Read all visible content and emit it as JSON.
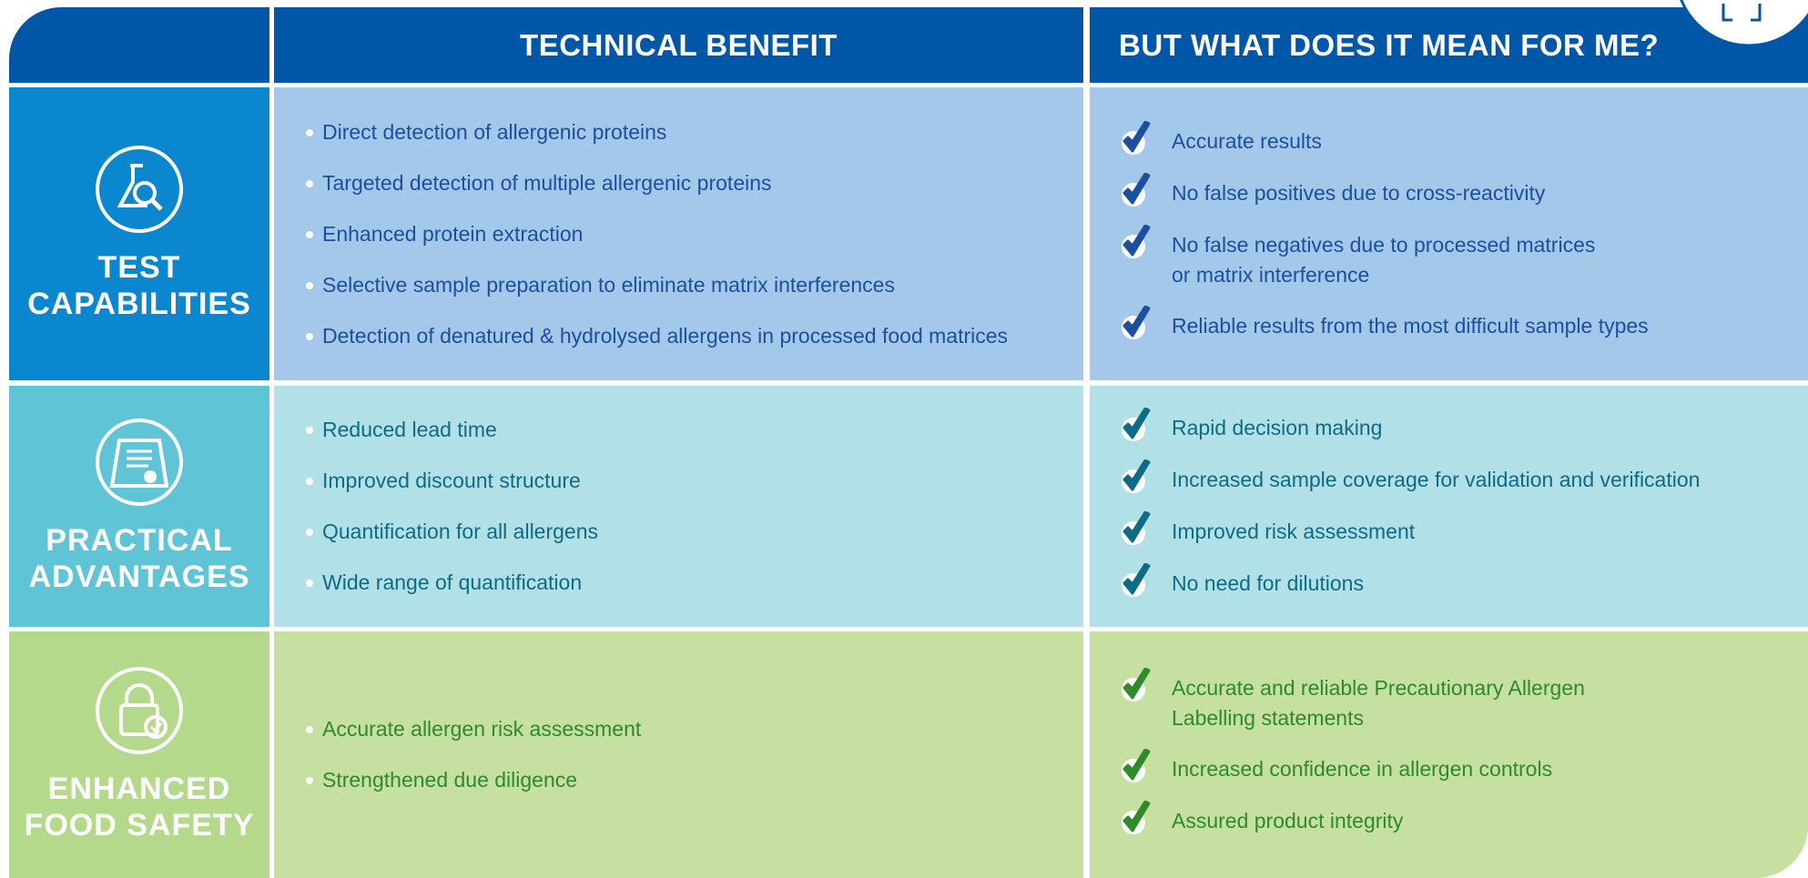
{
  "header": {
    "columns": [
      "TECHNICAL BENEFIT",
      "BUT WHAT DOES IT MEAN FOR ME?"
    ]
  },
  "rows": [
    {
      "label": [
        "TEST",
        "CAPABILITIES"
      ],
      "benefits": [
        "Direct detection of allergenic proteins",
        "Targeted detection of multiple allergenic proteins",
        "Enhanced protein extraction",
        "Selective sample preparation to eliminate matrix interferences",
        "Detection of denatured & hydrolysed allergens in processed food matrices"
      ],
      "meanings": [
        [
          "Accurate results"
        ],
        [
          "No false positives due to cross-reactivity"
        ],
        [
          "No false negatives due to processed matrices",
          "or matrix interference"
        ],
        [
          "Reliable results from the most difficult sample types"
        ]
      ]
    },
    {
      "label": [
        "PRACTICAL",
        "ADVANTAGES"
      ],
      "benefits": [
        "Reduced lead time",
        "Improved discount structure",
        "Quantification for all allergens",
        "Wide range of quantification"
      ],
      "meanings": [
        [
          "Rapid decision making"
        ],
        [
          "Increased sample coverage for validation and verification"
        ],
        [
          "Improved risk assessment"
        ],
        [
          "No need for dilutions"
        ]
      ]
    },
    {
      "label": [
        "ENHANCED",
        "FOOD SAFETY"
      ],
      "benefits": [
        "Accurate allergen risk assessment",
        "Strengthened due diligence"
      ],
      "meanings": [
        [
          "Accurate and reliable Precautionary Allergen",
          "Labelling statements"
        ],
        [
          "Increased confidence in allergen controls"
        ],
        [
          "Assured product integrity"
        ]
      ]
    }
  ]
}
